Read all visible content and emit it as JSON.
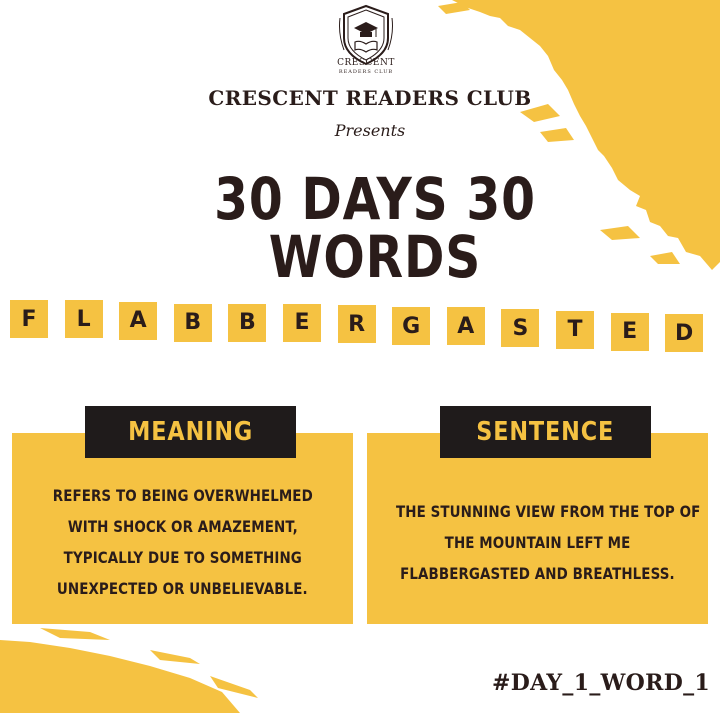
{
  "brand": {
    "logo_name": "CRESCENT",
    "logo_subtitle": "READERS CLUB",
    "club_name": "CRESCENT READERS CLUB",
    "presents": "Presents"
  },
  "title": "30 DAYS 30 WORDS",
  "word": {
    "text": "FLABBERGASTED",
    "letters": [
      "F",
      "L",
      "A",
      "B",
      "B",
      "E",
      "R",
      "G",
      "A",
      "S",
      "T",
      "E",
      "D"
    ]
  },
  "meaning": {
    "label": "MEANING",
    "lines": [
      "REFERS TO BEING OVERWHELMED",
      "WITH SHOCK OR AMAZEMENT,",
      "TYPICALLY DUE TO SOMETHING",
      "UNEXPECTED OR UNBELIEVABLE."
    ]
  },
  "sentence": {
    "label": "SENTENCE",
    "lines": [
      "THE STUNNING VIEW FROM THE TOP OF",
      "THE MOUNTAIN LEFT ME",
      "FLABBERGASTED AND BREATHLESS."
    ]
  },
  "hashtag": "#DAY_1_WORD_1",
  "colors": {
    "accent_yellow": "#f5c242",
    "dark": "#1f1b1b",
    "text_dark": "#2a1c1a",
    "background": "#ffffff"
  }
}
